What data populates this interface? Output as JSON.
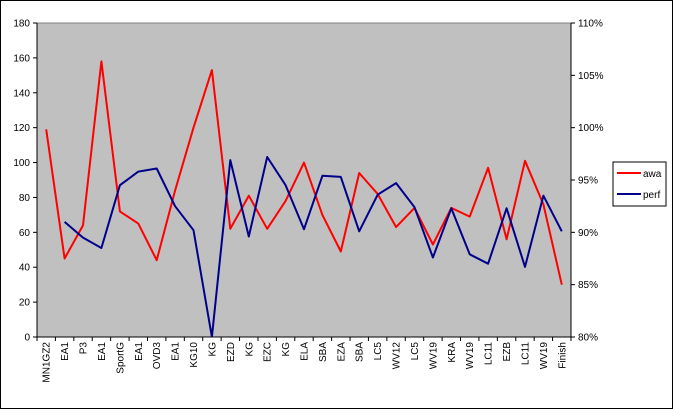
{
  "chart_data": {
    "type": "line",
    "title": "",
    "xlabel": "",
    "ylabel": "",
    "categories": [
      "MN1GZ2",
      "EA1",
      "P3",
      "EA1",
      "SportG",
      "EA1",
      "OVD3",
      "EA1",
      "KG10",
      "KG",
      "EZD",
      "KG",
      "EZC",
      "KG",
      "ELA",
      "SBA",
      "EZA",
      "SBA",
      "LC5",
      "WV12",
      "LC5",
      "WV19",
      "KRA",
      "WV19",
      "LC11",
      "EZB",
      "LC11",
      "WV19",
      "Finish"
    ],
    "ylim": [
      0,
      180
    ],
    "y_ticks": [
      "0",
      "20",
      "40",
      "60",
      "80",
      "100",
      "120",
      "140",
      "160",
      "180"
    ],
    "y2lim": [
      80,
      110
    ],
    "y2_ticks": [
      "80%",
      "85%",
      "90%",
      "95%",
      "100%",
      "105%",
      "110%"
    ],
    "grid": false,
    "plot_background": "#c0c0c0",
    "legend_position": "right",
    "series": [
      {
        "name": "awa",
        "axis": "left",
        "color": "#ff0000",
        "values": [
          119,
          45,
          64,
          158,
          72,
          65,
          44,
          84,
          120,
          153,
          62,
          81,
          62,
          78,
          100,
          70,
          49,
          94,
          82,
          63,
          74,
          53,
          74,
          69,
          97,
          56,
          101,
          76,
          30
        ]
      },
      {
        "name": "perf",
        "axis": "right",
        "color": "#00008b",
        "values": [
          null,
          91.0,
          89.5,
          88.5,
          94.5,
          95.8,
          96.1,
          92.5,
          90.2,
          80.0,
          96.9,
          89.6,
          97.2,
          94.5,
          90.3,
          95.4,
          95.3,
          90.1,
          93.6,
          94.7,
          92.4,
          87.6,
          92.3,
          87.9,
          87.0,
          92.3,
          86.7,
          93.5,
          90.1
        ]
      }
    ]
  }
}
